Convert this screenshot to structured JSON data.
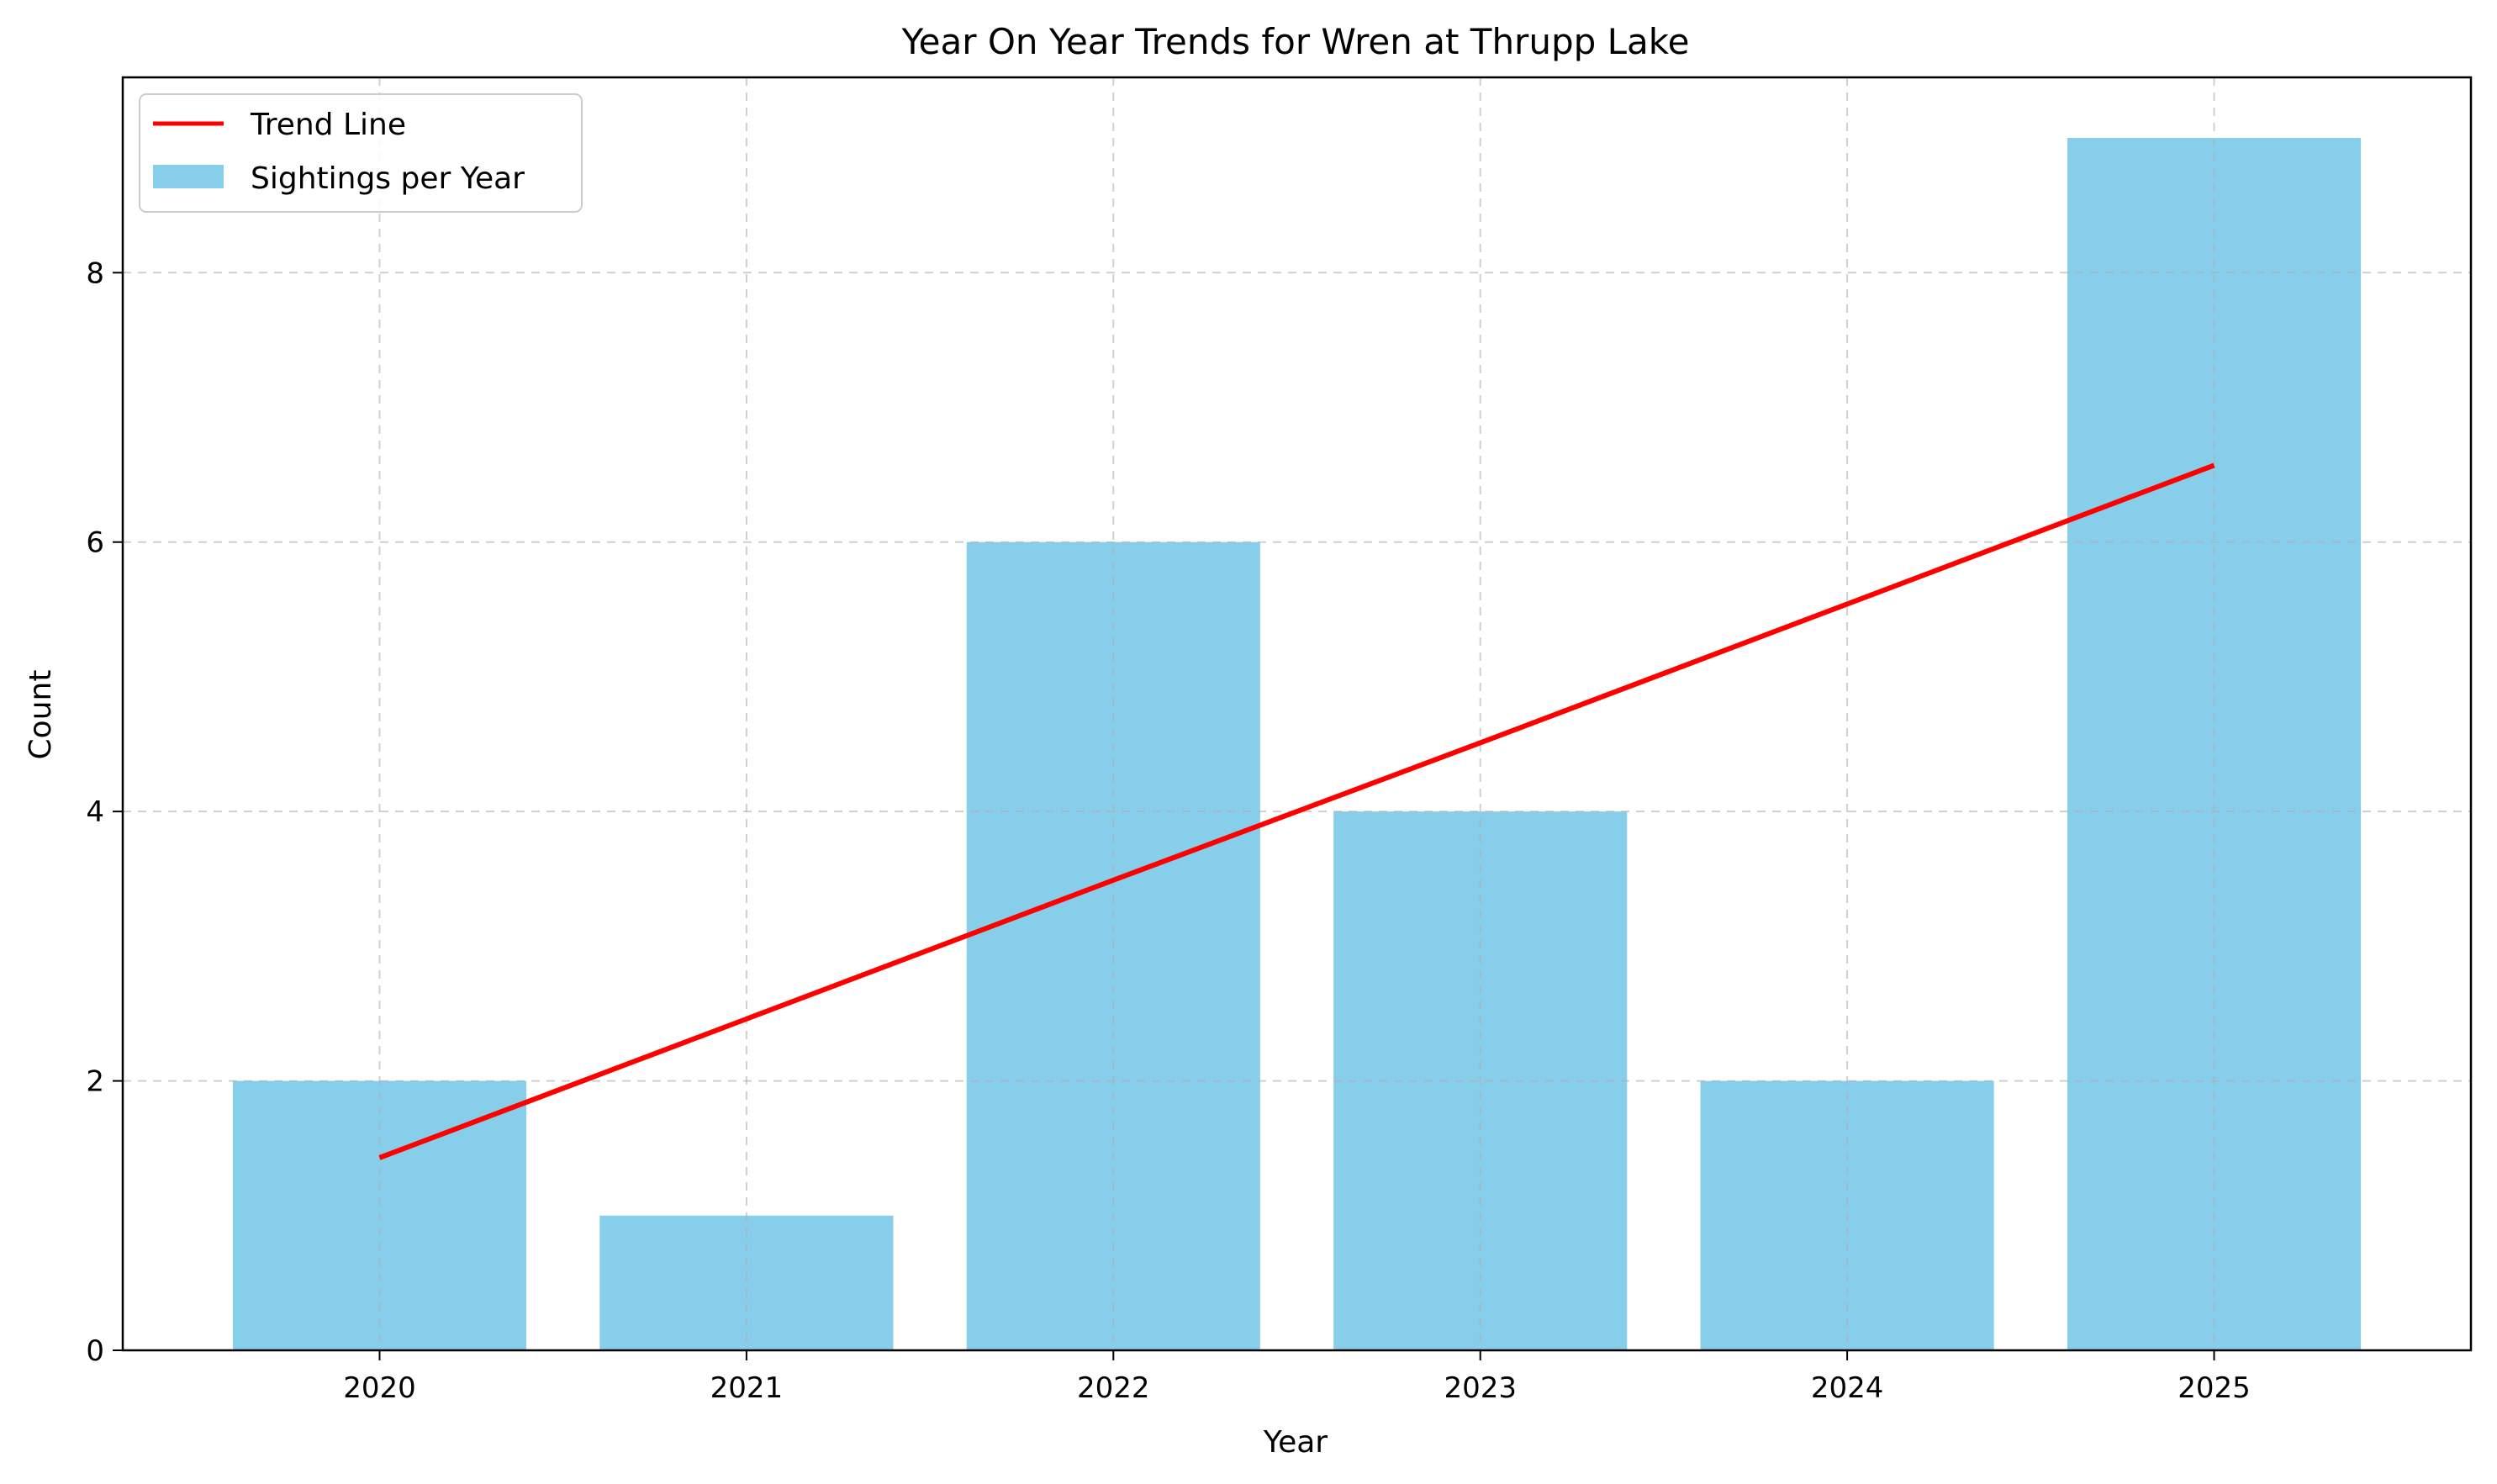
{
  "chart_data": {
    "type": "bar",
    "title": "Year On Year Trends for Wren at Thrupp Lake",
    "xlabel": "Year",
    "ylabel": "Count",
    "categories": [
      "2020",
      "2021",
      "2022",
      "2023",
      "2024",
      "2025"
    ],
    "series": [
      {
        "name": "Sightings per Year",
        "type": "bar",
        "values": [
          2,
          1,
          6,
          4,
          2,
          9
        ],
        "color": "#87ceeb"
      },
      {
        "name": "Trend Line",
        "type": "line",
        "values": [
          1.43,
          2.46,
          3.49,
          4.51,
          5.54,
          6.57
        ],
        "color": "#ff0000"
      }
    ],
    "yticks": [
      "0",
      "2",
      "4",
      "6",
      "8"
    ],
    "ylim": [
      0,
      9.45
    ],
    "xlim": [
      -0.7,
      5.7
    ],
    "grid": true,
    "legend_position": "top-left"
  }
}
